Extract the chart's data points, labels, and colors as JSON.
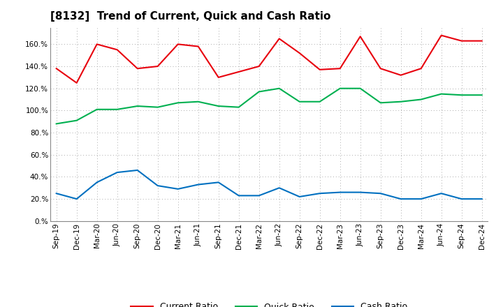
{
  "title": "[8132]  Trend of Current, Quick and Cash Ratio",
  "x_labels": [
    "Sep-19",
    "Dec-19",
    "Mar-20",
    "Jun-20",
    "Sep-20",
    "Dec-20",
    "Mar-21",
    "Jun-21",
    "Sep-21",
    "Dec-21",
    "Mar-22",
    "Jun-22",
    "Sep-22",
    "Dec-22",
    "Mar-23",
    "Jun-23",
    "Sep-23",
    "Dec-23",
    "Mar-24",
    "Jun-24",
    "Sep-24",
    "Dec-24"
  ],
  "current_ratio": [
    138,
    125,
    160,
    155,
    138,
    140,
    160,
    158,
    130,
    135,
    140,
    165,
    152,
    137,
    138,
    167,
    138,
    132,
    138,
    168,
    163,
    163
  ],
  "quick_ratio": [
    88,
    91,
    101,
    101,
    104,
    103,
    107,
    108,
    104,
    103,
    117,
    120,
    108,
    108,
    120,
    120,
    107,
    108,
    110,
    115,
    114,
    114
  ],
  "cash_ratio": [
    25,
    20,
    35,
    44,
    46,
    32,
    29,
    33,
    35,
    23,
    23,
    30,
    22,
    25,
    26,
    26,
    25,
    20,
    20,
    25,
    20,
    20
  ],
  "current_color": "#e8000d",
  "quick_color": "#00b050",
  "cash_color": "#0070c0",
  "background_color": "#ffffff",
  "grid_color": "#aaaaaa",
  "ylim": [
    0,
    175
  ],
  "yticks": [
    0,
    20,
    40,
    60,
    80,
    100,
    120,
    140,
    160
  ],
  "legend_labels": [
    "Current Ratio",
    "Quick Ratio",
    "Cash Ratio"
  ],
  "title_fontsize": 11,
  "tick_fontsize": 7.5,
  "legend_fontsize": 9
}
